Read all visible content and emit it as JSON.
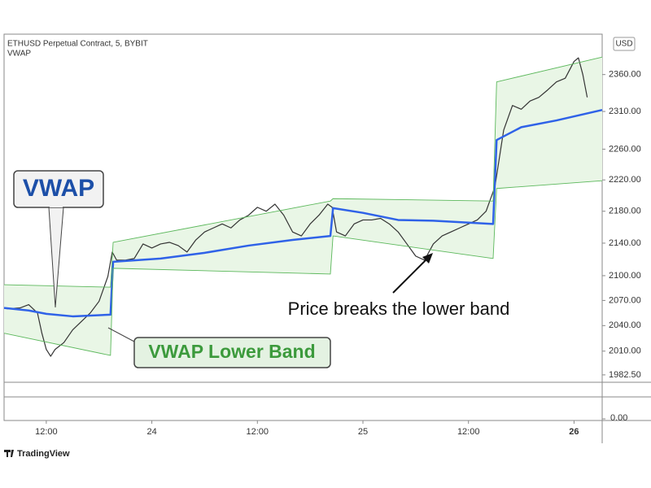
{
  "header": {
    "symbol": "ETHUSD Perpetual Contract, 5, BYBIT",
    "indicator": "VWAP",
    "currency": "USD"
  },
  "footer": {
    "brand": "TradingView"
  },
  "chart_data": {
    "type": "line",
    "log_scale": true,
    "grid": false,
    "xlim": [
      7.2,
      75.2
    ],
    "ylim": [
      1974,
      2416
    ],
    "xticks": [
      {
        "value": 12,
        "label": "12:00"
      },
      {
        "value": 24,
        "label": "24"
      },
      {
        "value": 36,
        "label": "12:00"
      },
      {
        "value": 48,
        "label": "25"
      },
      {
        "value": 60,
        "label": "12:00"
      },
      {
        "value": 72,
        "label": "26"
      }
    ],
    "yticks": [
      {
        "value": 1982.5,
        "label": "1982.50"
      },
      {
        "value": 2010,
        "label": "2010.00"
      },
      {
        "value": 2040,
        "label": "2040.00"
      },
      {
        "value": 2070,
        "label": "2070.00"
      },
      {
        "value": 2100,
        "label": "2100.00"
      },
      {
        "value": 2140,
        "label": "2140.00"
      },
      {
        "value": 2180,
        "label": "2180.00"
      },
      {
        "value": 2220,
        "label": "2220.00"
      },
      {
        "value": 2260,
        "label": "2260.00"
      },
      {
        "value": 2310,
        "label": "2310.00"
      },
      {
        "value": 2360,
        "label": "2360.00"
      }
    ],
    "series": [
      {
        "name": "Price",
        "color": "#333333",
        "x": [
          7.5,
          9,
          10,
          11,
          11.5,
          12,
          12.5,
          13,
          14,
          15,
          16,
          17,
          18,
          19,
          19.5,
          20,
          21,
          22,
          23,
          24,
          25,
          26,
          27,
          28,
          29,
          30,
          31,
          32,
          33,
          34,
          35,
          36,
          37,
          38,
          39,
          40,
          41,
          42,
          43,
          44,
          44.5,
          45,
          46,
          47,
          48,
          49,
          50,
          51,
          52,
          53,
          54,
          55,
          56,
          57,
          58,
          59,
          60,
          61,
          62,
          63,
          64,
          65,
          66,
          67,
          68,
          69,
          70,
          71,
          72,
          72.5,
          73,
          73.5
        ],
        "values": [
          2060,
          2061,
          2065,
          2055,
          2031,
          2012,
          2004,
          2012,
          2020,
          2035,
          2045,
          2055,
          2069,
          2099,
          2129,
          2119,
          2119,
          2121,
          2139,
          2134,
          2139,
          2141,
          2137,
          2129,
          2144,
          2154,
          2159,
          2164,
          2159,
          2169,
          2175,
          2185,
          2180,
          2189,
          2175,
          2154,
          2149,
          2164,
          2175,
          2189,
          2185,
          2154,
          2149,
          2164,
          2169,
          2169,
          2171,
          2164,
          2154,
          2139,
          2124,
          2119,
          2139,
          2149,
          2154,
          2159,
          2164,
          2169,
          2180,
          2211,
          2285,
          2318,
          2313,
          2324,
          2329,
          2339,
          2350,
          2355,
          2378,
          2383,
          2360,
          2329
        ]
      },
      {
        "name": "VWAP",
        "color": "#2f62e8",
        "x": [
          7.2,
          10,
          12,
          15,
          19.3,
          19.6,
          25,
          30,
          35,
          40,
          44.3,
          44.6,
          48,
          52,
          56,
          62.8,
          63.2,
          66,
          70,
          75.2
        ],
        "values": [
          2061,
          2058,
          2054,
          2051,
          2053,
          2117,
          2121,
          2128,
          2137,
          2144,
          2149,
          2184,
          2178,
          2169,
          2168,
          2164,
          2272,
          2289,
          2298,
          2312
        ]
      },
      {
        "name": "Upper Band",
        "color": "#5cb85c",
        "x": [
          7.2,
          19.3,
          19.6,
          44.3,
          44.6,
          62.8,
          63.2,
          75.2
        ],
        "values": [
          2089,
          2086,
          2141,
          2193,
          2196,
          2193,
          2350,
          2384
        ]
      },
      {
        "name": "Lower Band",
        "color": "#5cb85c",
        "x": [
          7.2,
          19.3,
          19.6,
          44.3,
          44.6,
          62.8,
          63.2,
          75.2
        ],
        "values": [
          2031,
          2005,
          2109,
          2102,
          2149,
          2121,
          2209,
          2219
        ]
      }
    ],
    "band_fill": "#e9f6e6",
    "annotations": {
      "vwap": "VWAP",
      "lower_band": "VWAP Lower Band",
      "breaks": "Price breaks the lower band"
    },
    "lower_pane": {
      "yticks": [
        {
          "value": 0,
          "label": "0.00"
        }
      ]
    }
  }
}
